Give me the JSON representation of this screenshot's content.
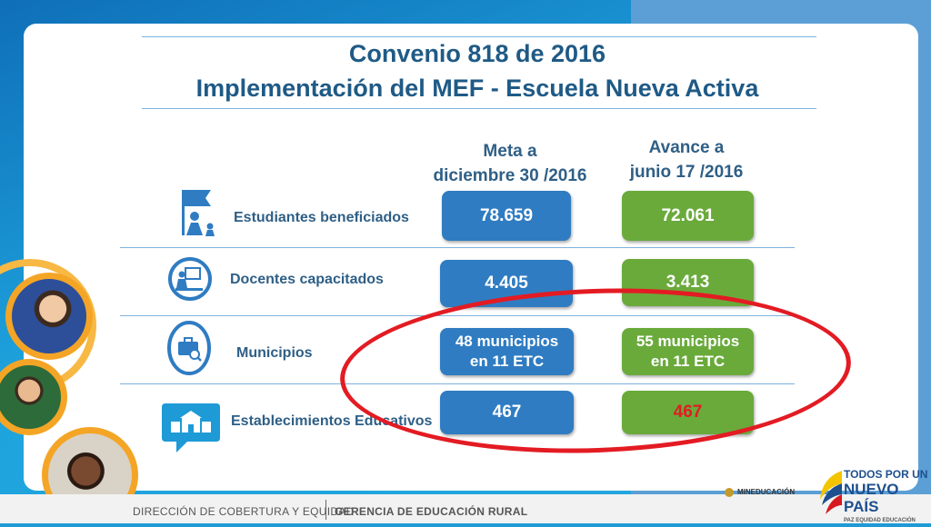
{
  "slide": {
    "title": "Convenio 818 de 2016",
    "subtitle": "Implementación del MEF - Escuela Nueva Activa"
  },
  "columns": {
    "meta_line1": "Meta a",
    "meta_line2": "diciembre 30 /2016",
    "avance_line1": "Avance a",
    "avance_line2": "junio 17 /2016"
  },
  "rows": [
    {
      "label": "Estudiantes beneficiados",
      "icon": "flag-children-icon",
      "meta": "78.659",
      "avance": "72.061"
    },
    {
      "label": "Docentes  capacitados",
      "icon": "teacher-board-icon",
      "meta": "4.405",
      "avance": "3.413"
    },
    {
      "label": "Municipios",
      "icon": "briefcase-search-icon",
      "meta_line1": "48 municipios",
      "meta_line2": "en 11 ETC",
      "avance_line1": "55 municipios",
      "avance_line2": "en 11 ETC"
    },
    {
      "label": "Establecimientos Educativos",
      "icon": "school-building-icon",
      "meta": "467",
      "avance": "467"
    }
  ],
  "footer": {
    "left": "DIRECCIÓN DE COBERTURA Y EQUIDAD",
    "right": "GERENCIA DE EDUCACIÓN RURAL"
  },
  "logos": {
    "mineducacion": "MINEDUCACIÓN",
    "nuevo_pais_line1": "TODOS POR UN",
    "nuevo_pais_line2": "NUEVO PAÍS",
    "nuevo_pais_line3": "PAZ   EQUIDAD   EDUCACIÓN"
  },
  "colors": {
    "meta_pill": "#2f7cc2",
    "avance_pill": "#6aaa3b",
    "highlight_ellipse": "#e31b23",
    "highlight_text": "#e31b23",
    "title": "#1f5a86"
  }
}
